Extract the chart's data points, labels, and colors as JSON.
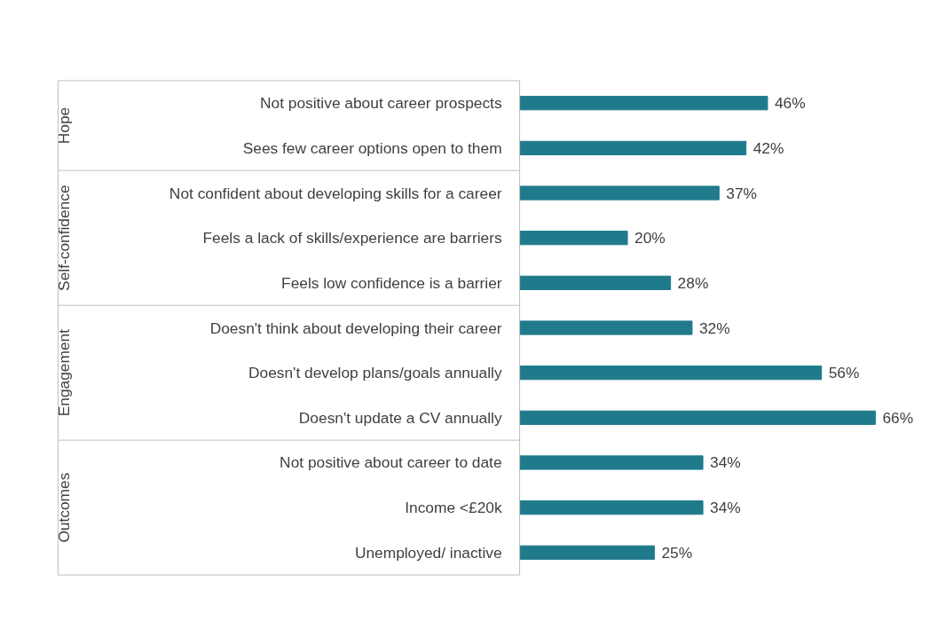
{
  "chart_data": {
    "type": "bar",
    "orientation": "horizontal",
    "categories": [
      "Not positive about career prospects",
      "Sees few career options open to them",
      "Not confident about developing skills for a career",
      "Feels a lack of skills/experience are barriers",
      "Feels low confidence is a barrier",
      "Doesn't think about developing their career",
      "Doesn't develop plans/goals annually",
      "Doesn't update a CV annually",
      "Not positive about career to date",
      "Income <£20k",
      "Unemployed/ inactive"
    ],
    "values": [
      46,
      42,
      37,
      20,
      28,
      32,
      56,
      66,
      34,
      34,
      25
    ],
    "value_labels": [
      "46%",
      "42%",
      "37%",
      "20%",
      "28%",
      "32%",
      "56%",
      "66%",
      "34%",
      "34%",
      "25%"
    ],
    "color": "#1f7b8c",
    "annotations": [
      "Hope",
      "Self-confidence",
      "Engagement",
      "Outcomes"
    ],
    "grid": false
  }
}
